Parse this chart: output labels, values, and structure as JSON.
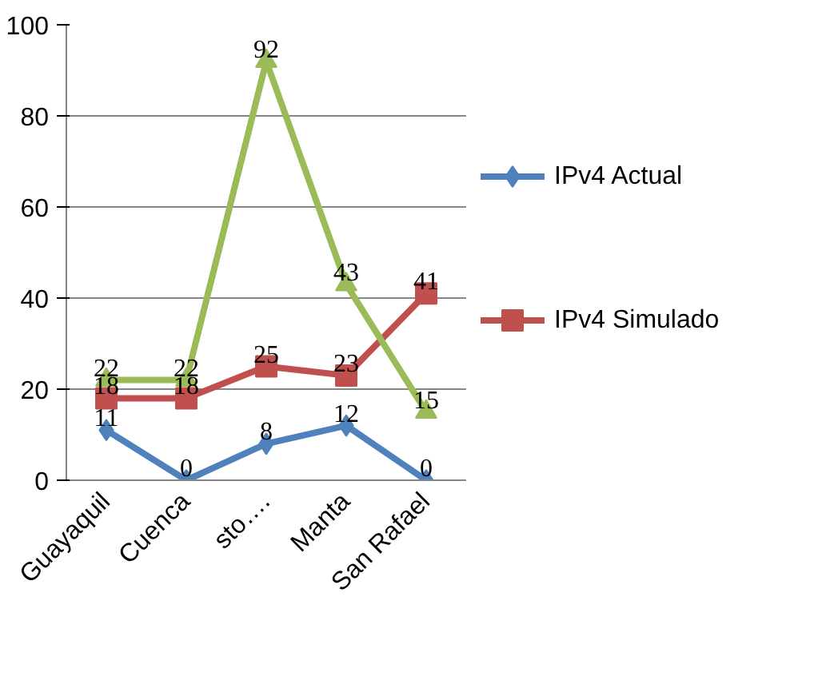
{
  "chart_data": {
    "type": "line",
    "categories": [
      "Guayaquil",
      "Cuenca",
      "sto….",
      "Manta",
      "San Rafael"
    ],
    "series": [
      {
        "name": "IPv4 Actual",
        "color": "#4f81bd",
        "marker": "diamond",
        "values": [
          11,
          0,
          8,
          12,
          0
        ]
      },
      {
        "name": "IPv4 Simulado",
        "color": "#c0504d",
        "marker": "square",
        "values": [
          18,
          18,
          25,
          23,
          41
        ]
      },
      {
        "color": "#9bbb59",
        "marker": "triangle",
        "values": [
          22,
          22,
          92,
          43,
          15
        ]
      }
    ],
    "ylim": [
      0,
      100
    ],
    "yticks": [
      0,
      20,
      40,
      60,
      80,
      100
    ],
    "grid": "y",
    "legend": "right",
    "data_labels": true
  }
}
